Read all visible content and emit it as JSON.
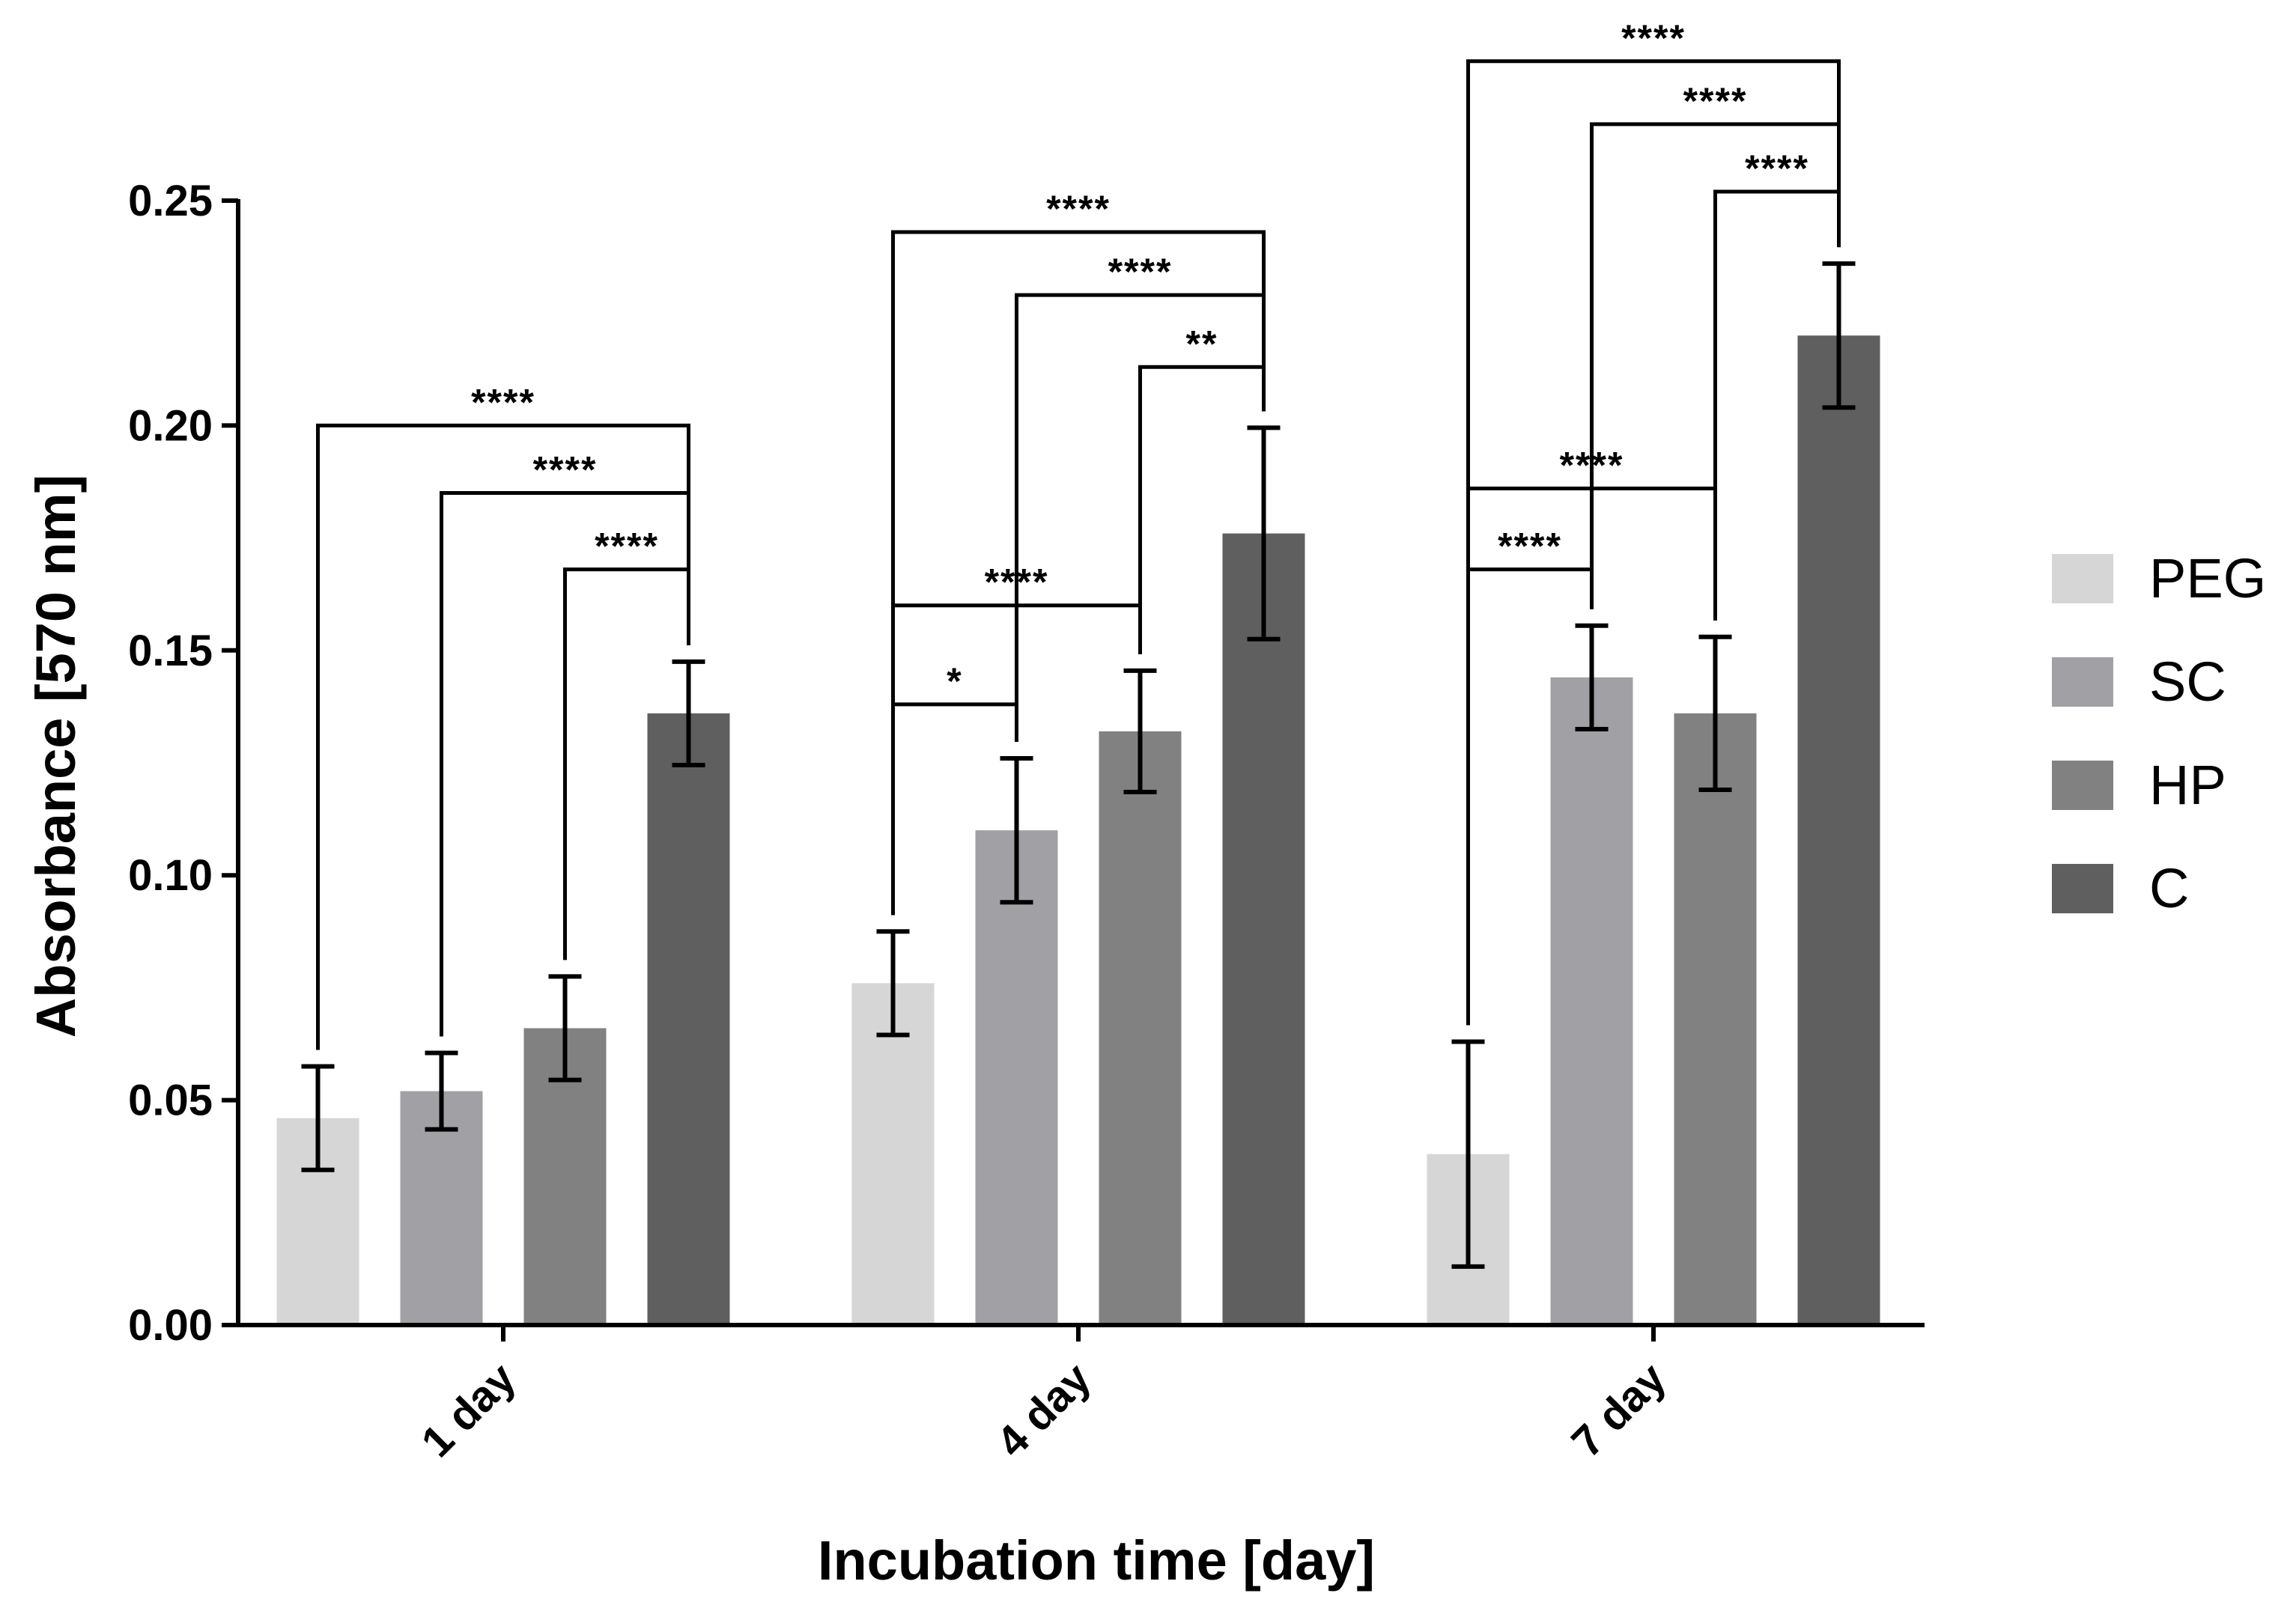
{
  "chart_data": {
    "type": "bar",
    "title": "",
    "xlabel": "Incubation time [day]",
    "ylabel": "Absorbance [570 nm]",
    "ylim": [
      0,
      0.25
    ],
    "yticks": [
      "0.00",
      "0.05",
      "0.10",
      "0.15",
      "0.20",
      "0.25"
    ],
    "categories": [
      "1 day",
      "4 day",
      "7 day"
    ],
    "series": [
      {
        "name": "PEG",
        "color": "#d6d6d6",
        "values": [
          0.046,
          0.076,
          0.038
        ],
        "errors": [
          0.0115,
          0.0115,
          0.025
        ]
      },
      {
        "name": "SC",
        "color": "#a1a1a5",
        "values": [
          0.052,
          0.11,
          0.144
        ],
        "errors": [
          0.0085,
          0.016,
          0.0115
        ]
      },
      {
        "name": "HP",
        "color": "#818181",
        "values": [
          0.066,
          0.132,
          0.136
        ],
        "errors": [
          0.0115,
          0.0135,
          0.017
        ]
      },
      {
        "name": "C",
        "color": "#5f5f5f",
        "values": [
          0.136,
          0.176,
          0.22
        ],
        "errors": [
          0.0115,
          0.0235,
          0.016
        ]
      }
    ],
    "legend_position": "right",
    "significance": [
      {
        "category": 0,
        "from": "PEG",
        "to": "C",
        "label": "****",
        "level": 0.2
      },
      {
        "category": 0,
        "from": "SC",
        "to": "C",
        "label": "****",
        "level": 0.185
      },
      {
        "category": 0,
        "from": "HP",
        "to": "C",
        "label": "****",
        "level": 0.168
      },
      {
        "category": 1,
        "from": "PEG",
        "to": "C",
        "label": "****",
        "level": 0.243
      },
      {
        "category": 1,
        "from": "SC",
        "to": "C",
        "label": "****",
        "level": 0.229
      },
      {
        "category": 1,
        "from": "HP",
        "to": "C",
        "label": "**",
        "level": 0.213
      },
      {
        "category": 1,
        "from": "PEG",
        "to": "HP",
        "label": "****",
        "level": 0.16
      },
      {
        "category": 1,
        "from": "PEG",
        "to": "SC",
        "label": "*",
        "level": 0.138
      },
      {
        "category": 2,
        "from": "PEG",
        "to": "C",
        "label": "****",
        "level": 0.281
      },
      {
        "category": 2,
        "from": "SC",
        "to": "C",
        "label": "****",
        "level": 0.267
      },
      {
        "category": 2,
        "from": "HP",
        "to": "C",
        "label": "****",
        "level": 0.252
      },
      {
        "category": 2,
        "from": "PEG",
        "to": "HP",
        "label": "****",
        "level": 0.186
      },
      {
        "category": 2,
        "from": "PEG",
        "to": "SC",
        "label": "****",
        "level": 0.168
      }
    ]
  }
}
